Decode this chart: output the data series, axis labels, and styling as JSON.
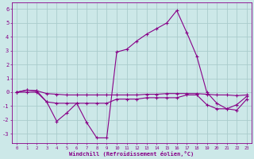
{
  "xlabel": "Windchill (Refroidissement éolien,°C)",
  "background_color": "#cce8e8",
  "grid_color": "#aacccc",
  "line_color": "#880088",
  "x_hours": [
    0,
    1,
    2,
    3,
    4,
    5,
    6,
    7,
    8,
    9,
    10,
    11,
    12,
    13,
    14,
    15,
    16,
    17,
    18,
    19,
    20,
    21,
    22,
    23
  ],
  "line1": [
    0.0,
    0.15,
    0.1,
    -0.1,
    -0.15,
    -0.2,
    -0.2,
    -0.2,
    -0.2,
    -0.2,
    -0.2,
    -0.2,
    -0.2,
    -0.15,
    -0.15,
    -0.1,
    -0.1,
    -0.1,
    -0.1,
    -0.15,
    -0.2,
    -0.2,
    -0.25,
    -0.2
  ],
  "line2": [
    0.0,
    0.15,
    0.1,
    -0.7,
    -2.1,
    -1.5,
    -0.8,
    -2.2,
    -3.3,
    -3.3,
    2.9,
    3.1,
    3.7,
    4.2,
    4.6,
    5.0,
    5.9,
    4.3,
    2.6,
    0.0,
    -0.8,
    -1.2,
    -1.3,
    -0.5
  ],
  "line3": [
    0.0,
    0.0,
    0.0,
    -0.7,
    -0.8,
    -0.8,
    -0.8,
    -0.8,
    -0.8,
    -0.8,
    -0.5,
    -0.5,
    -0.5,
    -0.4,
    -0.4,
    -0.4,
    -0.4,
    -0.2,
    -0.2,
    -0.9,
    -1.2,
    -1.2,
    -0.9,
    -0.3
  ],
  "ylim": [
    -3.7,
    6.5
  ],
  "yticks": [
    -3,
    -2,
    -1,
    0,
    1,
    2,
    3,
    4,
    5,
    6
  ],
  "xticks": [
    0,
    1,
    2,
    3,
    4,
    5,
    6,
    7,
    8,
    9,
    10,
    11,
    12,
    13,
    14,
    15,
    16,
    17,
    18,
    19,
    20,
    21,
    22,
    23
  ]
}
